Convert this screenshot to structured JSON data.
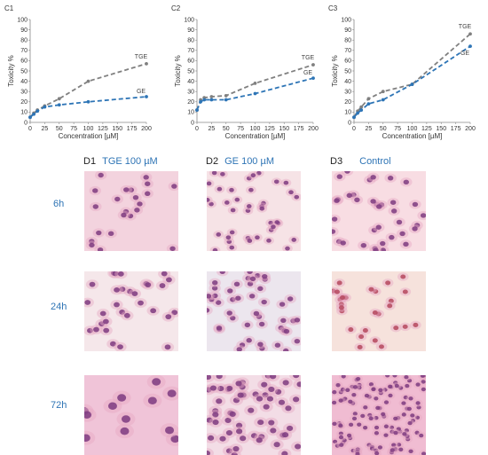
{
  "chart_data": [
    {
      "label": "C1",
      "type": "line",
      "xlabel": "Concentration [µM]",
      "ylabel": "Toxicity %",
      "xlim": [
        0,
        200
      ],
      "ylim": [
        0,
        100
      ],
      "x_ticks": [
        "0",
        "25",
        "50",
        "75",
        "100",
        "125",
        "150",
        "175",
        "200"
      ],
      "y_ticks": [
        "0",
        "10",
        "20",
        "30",
        "40",
        "50",
        "60",
        "70",
        "80",
        "90",
        "100"
      ],
      "grid": false,
      "series": [
        {
          "name": "TGE",
          "color": "#808080",
          "x": [
            0,
            6.25,
            12.5,
            25,
            50,
            100,
            200
          ],
          "y": [
            5,
            9,
            12,
            16,
            23,
            40,
            57
          ]
        },
        {
          "name": "GE",
          "color": "#2e75b6",
          "x": [
            0,
            6.25,
            12.5,
            25,
            50,
            100,
            200
          ],
          "y": [
            5,
            8,
            11,
            15,
            17,
            20,
            25
          ]
        }
      ]
    },
    {
      "label": "C2",
      "type": "line",
      "xlabel": "Concentration [µM]",
      "ylabel": "Toxicity %",
      "xlim": [
        0,
        200
      ],
      "ylim": [
        0,
        100
      ],
      "x_ticks": [
        "0",
        "25",
        "50",
        "75",
        "100",
        "125",
        "150",
        "175",
        "200"
      ],
      "y_ticks": [
        "0",
        "10",
        "20",
        "30",
        "40",
        "50",
        "60",
        "70",
        "80",
        "90",
        "100"
      ],
      "grid": false,
      "series": [
        {
          "name": "TGE",
          "color": "#808080",
          "x": [
            0,
            6.25,
            12.5,
            25,
            50,
            100,
            200
          ],
          "y": [
            12,
            22,
            24,
            25,
            26,
            38,
            56
          ]
        },
        {
          "name": "GE",
          "color": "#2e75b6",
          "x": [
            0,
            6.25,
            12.5,
            25,
            50,
            100,
            200
          ],
          "y": [
            12,
            20,
            22,
            22,
            22,
            28,
            43
          ]
        }
      ]
    },
    {
      "label": "C3",
      "type": "line",
      "xlabel": "Concentration [µM]",
      "ylabel": "Toxicity %",
      "xlim": [
        0,
        200
      ],
      "ylim": [
        0,
        100
      ],
      "x_ticks": [
        "0",
        "25",
        "50",
        "75",
        "100",
        "125",
        "150",
        "175",
        "200"
      ],
      "y_ticks": [
        "0",
        "10",
        "20",
        "30",
        "40",
        "50",
        "60",
        "70",
        "80",
        "90",
        "100"
      ],
      "grid": false,
      "series": [
        {
          "name": "TGE",
          "color": "#808080",
          "x": [
            0,
            6.25,
            12.5,
            25,
            50,
            100,
            200
          ],
          "y": [
            5,
            11,
            15,
            23,
            30,
            37,
            86
          ]
        },
        {
          "name": "GE",
          "color": "#2e75b6",
          "x": [
            0,
            6.25,
            12.5,
            25,
            50,
            100,
            200
          ],
          "y": [
            5,
            9,
            12,
            18,
            22,
            37,
            74
          ]
        }
      ]
    }
  ],
  "micrographs": {
    "columns": [
      {
        "letter": "D1",
        "title": "TGE 100 µM"
      },
      {
        "letter": "D2",
        "title": "GE 100 µM"
      },
      {
        "letter": "D3",
        "title": "Control"
      }
    ],
    "rows": [
      "6h",
      "24h",
      "72h"
    ],
    "colors": {
      "stain_bg": "#f2d6df",
      "nucleus": "#8b3a7a",
      "label_blue": "#2e74b5"
    }
  }
}
